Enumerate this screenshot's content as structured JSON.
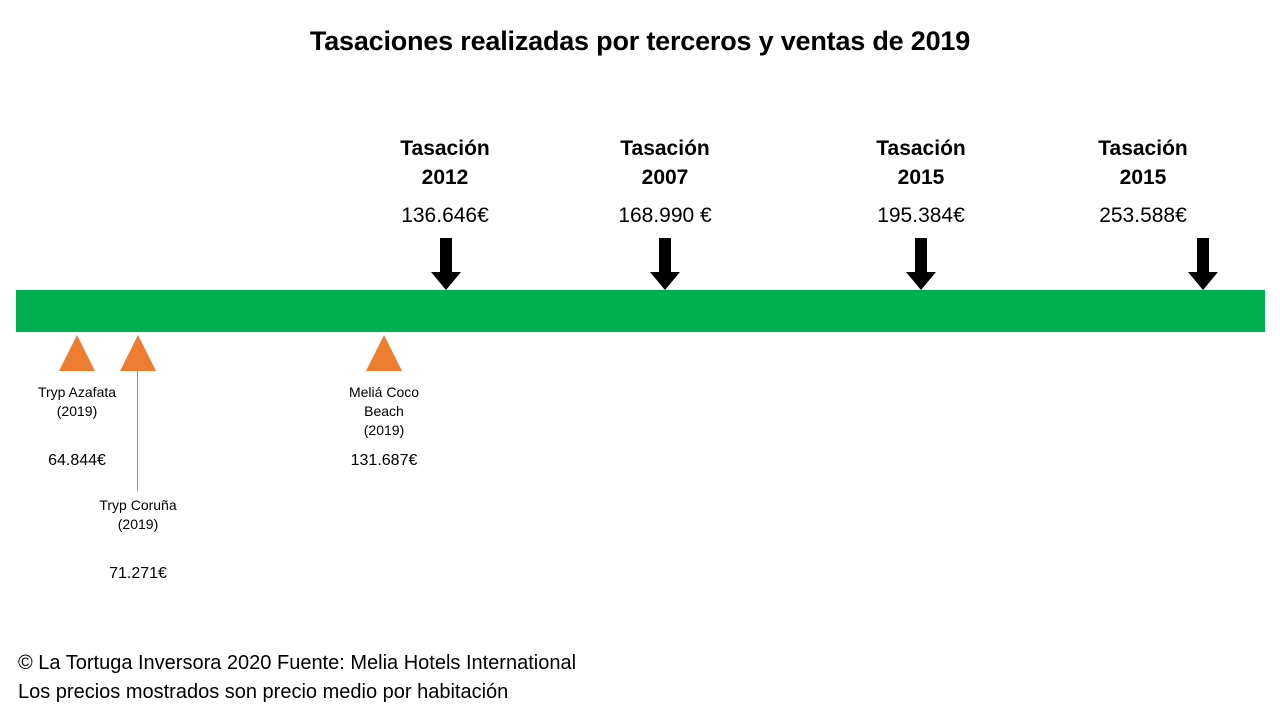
{
  "title": "Tasaciones realizadas por terceros y ventas de 2019",
  "colors": {
    "timeline": "#00b050",
    "sale_marker": "#ed7d31",
    "arrow": "#000000"
  },
  "valuations": [
    {
      "label_line1": "Tasación",
      "label_line2": "2012",
      "amount": "136.646€"
    },
    {
      "label_line1": "Tasación",
      "label_line2": "2007",
      "amount": "168.990 €"
    },
    {
      "label_line1": "Tasación",
      "label_line2": "2015",
      "amount": "195.384€"
    },
    {
      "label_line1": "Tasación",
      "label_line2": "2015",
      "amount": "253.588€"
    }
  ],
  "sales": [
    {
      "name_line1": "Tryp Azafata",
      "name_line2": "(2019)",
      "name_line3": "",
      "amount": "64.844€"
    },
    {
      "name_line1": "Tryp Coruña",
      "name_line2": "(2019)",
      "name_line3": "",
      "amount": "71.271€"
    },
    {
      "name_line1": "Meliá Coco",
      "name_line2": "Beach",
      "name_line3": "(2019)",
      "amount": "131.687€"
    }
  ],
  "footer": {
    "line1": "© La Tortuga Inversora 2020 Fuente: Melia Hotels International",
    "line2": "Los precios mostrados son precio medio por habitación"
  }
}
